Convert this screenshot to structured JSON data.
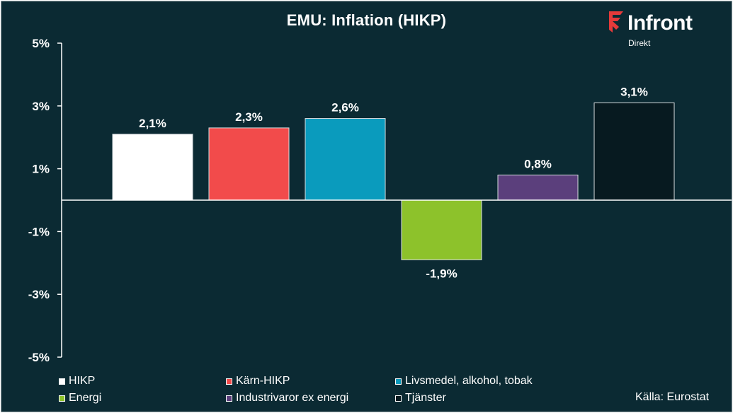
{
  "colors": {
    "background": "#0b2a33",
    "text": "#ffffff",
    "logo_accent": "#e63a3a"
  },
  "logo": {
    "word": "Infront",
    "sub": "Direkt",
    "icon": "infront-logo-icon"
  },
  "source": "Källa:  Eurostat",
  "chart_data": {
    "type": "bar",
    "title": "EMU: Inflation (HIKP)",
    "xlabel": "",
    "ylabel": "",
    "ylim": [
      -5,
      5
    ],
    "yticks": [
      5,
      3,
      1,
      -1,
      -3,
      -5
    ],
    "ytick_labels": [
      "5%",
      "3%",
      "1%",
      "-1%",
      "-3%",
      "-5%"
    ],
    "grid": false,
    "legend_position": "bottom",
    "categories": [
      "HIKP",
      "Kärn-HIKP",
      "Livsmedel, alkohol, tobak",
      "Energi",
      "Industrivaror ex energi",
      "Tjänster"
    ],
    "values": [
      2.1,
      2.3,
      2.6,
      -1.9,
      0.8,
      3.1
    ],
    "value_labels": [
      "2,1%",
      "2,3%",
      "2,6%",
      "-1,9%",
      "0,8%",
      "3,1%"
    ],
    "bar_colors": [
      "#ffffff",
      "#f24b4b",
      "#0a9bbd",
      "#8dc22b",
      "#5b3f7c",
      "#071a20"
    ]
  }
}
